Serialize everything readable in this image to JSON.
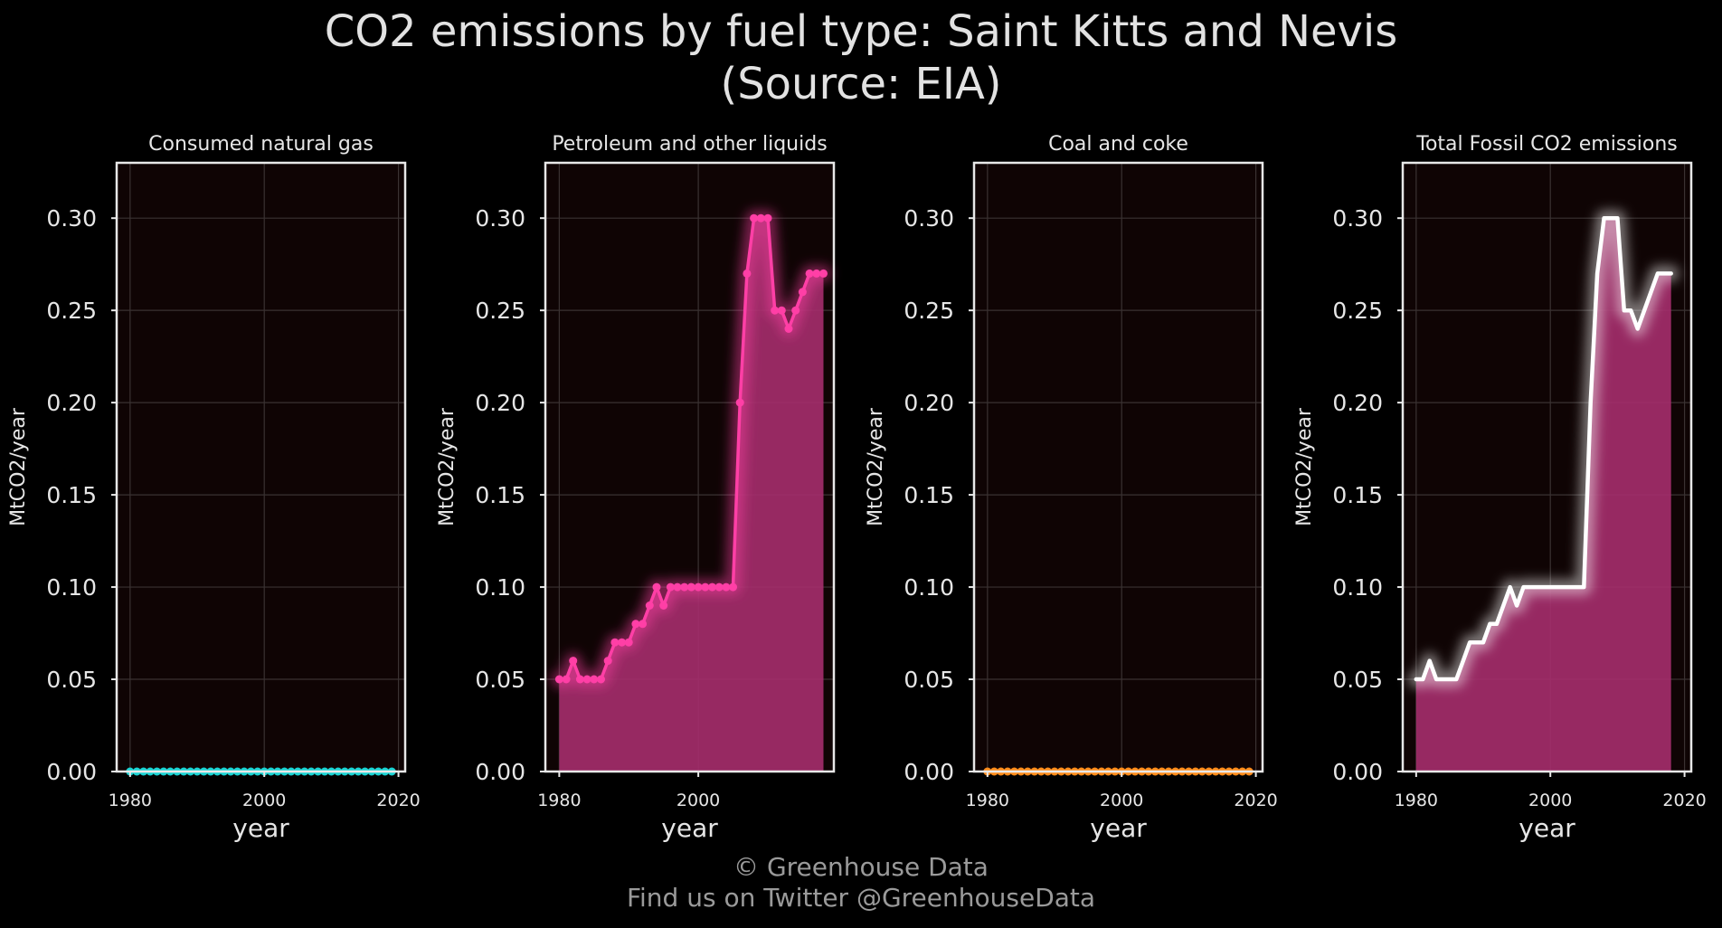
{
  "title": {
    "line1": "CO2 emissions by fuel type: Saint Kitts and Nevis",
    "line2": "(Source: EIA)"
  },
  "footer": {
    "line1": "© Greenhouse Data",
    "line2": "Find us on Twitter @GreenhouseData"
  },
  "colors": {
    "background": "#000000",
    "plot_background": "#0f0404",
    "frame": "#e8e8e8",
    "grid": "#3a3232",
    "text": "#e6e6e6",
    "footer_text": "#9a9a9a"
  },
  "chart_data": [
    {
      "type": "area",
      "title": "Consumed natural gas",
      "xlabel": "year",
      "ylabel": "MtCO2/year",
      "xlim": [
        1978,
        2021
      ],
      "ylim": [
        0,
        0.33
      ],
      "xticks": [
        1980,
        2000,
        2020
      ],
      "yticks": [
        "0.00",
        "0.05",
        "0.10",
        "0.15",
        "0.20",
        "0.25",
        "0.30"
      ],
      "grid": true,
      "markers": true,
      "color": "#19d3d3",
      "fill": "#19d3d3",
      "series": [
        {
          "x": [
            1980,
            1981,
            1982,
            1983,
            1984,
            1985,
            1986,
            1987,
            1988,
            1989,
            1990,
            1991,
            1992,
            1993,
            1994,
            1995,
            1996,
            1997,
            1998,
            1999,
            2000,
            2001,
            2002,
            2003,
            2004,
            2005,
            2006,
            2007,
            2008,
            2009,
            2010,
            2011,
            2012,
            2013,
            2014,
            2015,
            2016,
            2017,
            2018,
            2019
          ],
          "y": [
            0,
            0,
            0,
            0,
            0,
            0,
            0,
            0,
            0,
            0,
            0,
            0,
            0,
            0,
            0,
            0,
            0,
            0,
            0,
            0,
            0,
            0,
            0,
            0,
            0,
            0,
            0,
            0,
            0,
            0,
            0,
            0,
            0,
            0,
            0,
            0,
            0,
            0,
            0,
            0
          ]
        }
      ]
    },
    {
      "type": "area",
      "title": "Petroleum and other liquids",
      "xlabel": "year",
      "ylabel": "MtCO2/year",
      "xlim": [
        1978,
        2019.5
      ],
      "ylim": [
        0,
        0.33
      ],
      "xticks": [
        1980,
        2000
      ],
      "yticks": [
        "0.00",
        "0.05",
        "0.10",
        "0.15",
        "0.20",
        "0.25",
        "0.30"
      ],
      "grid": true,
      "markers": true,
      "color": "#ff3fa6",
      "fill": "#a62d6d",
      "series": [
        {
          "x": [
            1980,
            1981,
            1982,
            1983,
            1984,
            1985,
            1986,
            1987,
            1988,
            1989,
            1990,
            1991,
            1992,
            1993,
            1994,
            1995,
            1996,
            1997,
            1998,
            1999,
            2000,
            2001,
            2002,
            2003,
            2004,
            2005,
            2006,
            2007,
            2008,
            2009,
            2010,
            2011,
            2012,
            2013,
            2014,
            2015,
            2016,
            2017,
            2018
          ],
          "y": [
            0.05,
            0.05,
            0.06,
            0.05,
            0.05,
            0.05,
            0.05,
            0.06,
            0.07,
            0.07,
            0.07,
            0.08,
            0.08,
            0.09,
            0.1,
            0.09,
            0.1,
            0.1,
            0.1,
            0.1,
            0.1,
            0.1,
            0.1,
            0.1,
            0.1,
            0.1,
            0.2,
            0.27,
            0.3,
            0.3,
            0.3,
            0.25,
            0.25,
            0.24,
            0.25,
            0.26,
            0.27,
            0.27,
            0.27
          ]
        }
      ]
    },
    {
      "type": "area",
      "title": "Coal and coke",
      "xlabel": "year",
      "ylabel": "MtCO2/year",
      "xlim": [
        1978,
        2021
      ],
      "ylim": [
        0,
        0.33
      ],
      "xticks": [
        1980,
        2000,
        2020
      ],
      "yticks": [
        "0.00",
        "0.05",
        "0.10",
        "0.15",
        "0.20",
        "0.25",
        "0.30"
      ],
      "grid": true,
      "markers": true,
      "color": "#ff8c1a",
      "fill": "#ff8c1a",
      "series": [
        {
          "x": [
            1980,
            1981,
            1982,
            1983,
            1984,
            1985,
            1986,
            1987,
            1988,
            1989,
            1990,
            1991,
            1992,
            1993,
            1994,
            1995,
            1996,
            1997,
            1998,
            1999,
            2000,
            2001,
            2002,
            2003,
            2004,
            2005,
            2006,
            2007,
            2008,
            2009,
            2010,
            2011,
            2012,
            2013,
            2014,
            2015,
            2016,
            2017,
            2018,
            2019
          ],
          "y": [
            0,
            0,
            0,
            0,
            0,
            0,
            0,
            0,
            0,
            0,
            0,
            0,
            0,
            0,
            0,
            0,
            0,
            0,
            0,
            0,
            0,
            0,
            0,
            0,
            0,
            0,
            0,
            0,
            0,
            0,
            0,
            0,
            0,
            0,
            0,
            0,
            0,
            0,
            0,
            0
          ]
        }
      ]
    },
    {
      "type": "area",
      "title": "Total Fossil CO2 emissions",
      "xlabel": "year",
      "ylabel": "MtCO2/year",
      "xlim": [
        1978,
        2021
      ],
      "ylim": [
        0,
        0.33
      ],
      "xticks": [
        1980,
        2000,
        2020
      ],
      "yticks": [
        "0.00",
        "0.05",
        "0.10",
        "0.15",
        "0.20",
        "0.25",
        "0.30"
      ],
      "grid": true,
      "markers": false,
      "color": "#ffffff",
      "fill": "#a62d6d",
      "series": [
        {
          "x": [
            1980,
            1981,
            1982,
            1983,
            1984,
            1985,
            1986,
            1987,
            1988,
            1989,
            1990,
            1991,
            1992,
            1993,
            1994,
            1995,
            1996,
            1997,
            1998,
            1999,
            2000,
            2001,
            2002,
            2003,
            2004,
            2005,
            2006,
            2007,
            2008,
            2009,
            2010,
            2011,
            2012,
            2013,
            2014,
            2015,
            2016,
            2017,
            2018
          ],
          "y": [
            0.05,
            0.05,
            0.06,
            0.05,
            0.05,
            0.05,
            0.05,
            0.06,
            0.07,
            0.07,
            0.07,
            0.08,
            0.08,
            0.09,
            0.1,
            0.09,
            0.1,
            0.1,
            0.1,
            0.1,
            0.1,
            0.1,
            0.1,
            0.1,
            0.1,
            0.1,
            0.2,
            0.27,
            0.3,
            0.3,
            0.3,
            0.25,
            0.25,
            0.24,
            0.25,
            0.26,
            0.27,
            0.27,
            0.27
          ]
        }
      ]
    }
  ]
}
